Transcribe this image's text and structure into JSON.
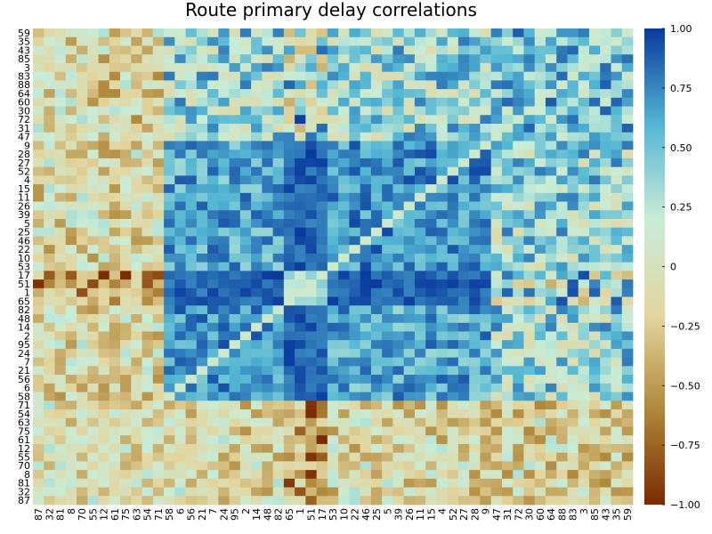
{
  "chart_data": {
    "type": "heatmap",
    "title": "Route primary delay correlations",
    "row_labels": [
      "59",
      "35",
      "43",
      "85",
      "3",
      "83",
      "88",
      "64",
      "60",
      "30",
      "72",
      "31",
      "47",
      "9",
      "28",
      "27",
      "52",
      "4",
      "15",
      "11",
      "26",
      "39",
      "5",
      "25",
      "46",
      "22",
      "10",
      "53",
      "17",
      "51",
      "1",
      "65",
      "82",
      "48",
      "14",
      "2",
      "95",
      "24",
      "7",
      "21",
      "56",
      "6",
      "58",
      "71",
      "54",
      "63",
      "75",
      "61",
      "12",
      "55",
      "70",
      "8",
      "81",
      "32",
      "87"
    ],
    "col_labels": [
      "87",
      "32",
      "81",
      "8",
      "70",
      "55",
      "12",
      "61",
      "75",
      "63",
      "54",
      "71",
      "58",
      "6",
      "56",
      "21",
      "7",
      "24",
      "95",
      "2",
      "14",
      "48",
      "82",
      "65",
      "1",
      "51",
      "17",
      "53",
      "10",
      "22",
      "46",
      "25",
      "5",
      "39",
      "26",
      "11",
      "15",
      "4",
      "52",
      "27",
      "28",
      "9",
      "47",
      "31",
      "72",
      "30",
      "60",
      "64",
      "88",
      "83",
      "3",
      "85",
      "43",
      "35",
      "59"
    ],
    "colorbar": {
      "min": -1.0,
      "max": 1.0,
      "ticks": [
        {
          "value": 1.0,
          "label": "1.00"
        },
        {
          "value": 0.75,
          "label": "0.75"
        },
        {
          "value": 0.5,
          "label": "0.50"
        },
        {
          "value": 0.25,
          "label": "0.25"
        },
        {
          "value": 0.0,
          "label": "0"
        },
        {
          "value": -0.25,
          "label": "−0.25"
        },
        {
          "value": -0.5,
          "label": "−0.50"
        },
        {
          "value": -0.75,
          "label": "−0.75"
        },
        {
          "value": -1.0,
          "label": "−1.00"
        }
      ],
      "colorscale": [
        "#7a2a00",
        "#b0883a",
        "#e3d6a0",
        "#c8ecd6",
        "#53b6d3",
        "#0a3a9e"
      ]
    },
    "groups": [
      {
        "rows": [
          "71",
          "54",
          "63",
          "75",
          "61",
          "12",
          "55",
          "70",
          "8",
          "81",
          "32",
          "87"
        ],
        "kind": "group-a"
      },
      {
        "rows": [
          "58",
          "6",
          "56",
          "21",
          "7",
          "24",
          "95",
          "2",
          "14",
          "48",
          "82",
          "65"
        ],
        "kind": "group-b"
      },
      {
        "rows": [
          "53",
          "10",
          "22",
          "46",
          "25",
          "5",
          "39",
          "26",
          "11",
          "15",
          "4",
          "52",
          "27",
          "28",
          "9"
        ],
        "kind": "group-c"
      },
      {
        "rows": [
          "47",
          "31",
          "72",
          "30",
          "60",
          "64",
          "88",
          "83",
          "3",
          "85",
          "43",
          "35",
          "59"
        ],
        "kind": "group-d"
      }
    ],
    "strong_routes": [
      "1",
      "51",
      "17",
      "65"
    ],
    "grid": false,
    "legend": "colorbar-right"
  }
}
